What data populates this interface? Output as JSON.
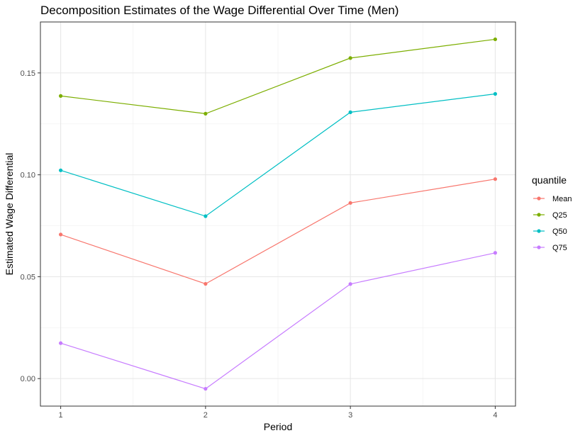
{
  "chart_data": {
    "type": "line",
    "title": "Decomposition Estimates of the Wage Differential Over Time (Men)",
    "xlabel": "Period",
    "ylabel": "Estimated Wage Differential",
    "x": [
      1,
      2,
      3,
      4
    ],
    "x_tick_labels": [
      "1",
      "2",
      "3",
      "4"
    ],
    "xlim": [
      0.86,
      4.14
    ],
    "y_ticks": [
      0.0,
      0.05,
      0.1,
      0.15
    ],
    "y_tick_labels": [
      "0.00",
      "0.05",
      "0.10",
      "0.15"
    ],
    "ylim": [
      -0.0135,
      0.175
    ],
    "grid": true,
    "legend_title": "quantile",
    "legend_position": "right",
    "series": [
      {
        "name": "Mean",
        "color": "#F8766D",
        "values": [
          0.0707,
          0.0465,
          0.0862,
          0.0979
        ]
      },
      {
        "name": "Q25",
        "color": "#7CAE00",
        "values": [
          0.1387,
          0.13,
          0.1573,
          0.1665
        ]
      },
      {
        "name": "Q50",
        "color": "#00BFC4",
        "values": [
          0.1022,
          0.0797,
          0.1307,
          0.1397
        ]
      },
      {
        "name": "Q75",
        "color": "#C77CFF",
        "values": [
          0.0174,
          -0.005,
          0.0464,
          0.0617
        ]
      }
    ]
  }
}
